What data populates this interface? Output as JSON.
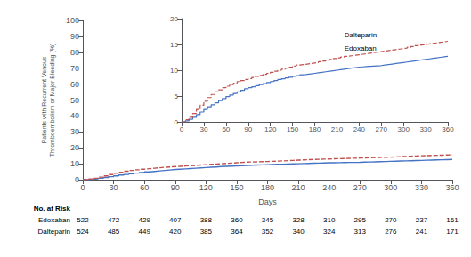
{
  "chart_data": [
    {
      "type": "step",
      "xlabel": "Days",
      "ylabel": "Patients with Recurrent Venous\nThromboembolism or Major Bleeding (%)",
      "x": [
        0,
        5,
        10,
        15,
        20,
        25,
        30,
        35,
        40,
        45,
        50,
        55,
        60,
        65,
        70,
        75,
        80,
        85,
        90,
        95,
        100,
        105,
        110,
        115,
        120,
        125,
        130,
        135,
        140,
        145,
        150,
        155,
        160,
        165,
        170,
        175,
        180,
        185,
        190,
        195,
        200,
        205,
        210,
        215,
        220,
        225,
        230,
        235,
        240,
        245,
        250,
        255,
        260,
        265,
        270,
        275,
        280,
        285,
        290,
        295,
        300,
        305,
        310,
        315,
        320,
        325,
        330,
        335,
        340,
        345,
        350,
        355,
        360
      ],
      "series": [
        {
          "name": "Edoxaban",
          "color": "#4472C4",
          "line_style": "solid",
          "values": [
            0,
            0.2,
            0.5,
            0.9,
            1.4,
            1.9,
            2.4,
            2.9,
            3.3,
            3.7,
            4.1,
            4.5,
            4.9,
            5.2,
            5.5,
            5.8,
            6.1,
            6.4,
            6.6,
            6.8,
            7.0,
            7.2,
            7.4,
            7.6,
            7.8,
            8.0,
            8.2,
            8.35,
            8.5,
            8.65,
            8.8,
            8.95,
            9.1,
            9.2,
            9.3,
            9.4,
            9.5,
            9.6,
            9.7,
            9.8,
            9.9,
            10.0,
            10.1,
            10.2,
            10.3,
            10.4,
            10.5,
            10.6,
            10.65,
            10.7,
            10.75,
            10.8,
            10.85,
            10.9,
            11.0,
            11.1,
            11.2,
            11.3,
            11.4,
            11.5,
            11.6,
            11.7,
            11.8,
            11.9,
            12.0,
            12.1,
            12.2,
            12.3,
            12.4,
            12.5,
            12.6,
            12.7,
            12.8
          ]
        },
        {
          "name": "Dalteparin",
          "color": "#C0504D",
          "line_style": "dashed",
          "values": [
            0,
            0.4,
            0.9,
            1.6,
            2.4,
            3.2,
            4.0,
            4.7,
            5.3,
            5.8,
            6.2,
            6.6,
            6.9,
            7.2,
            7.5,
            7.8,
            8.0,
            8.2,
            8.4,
            8.6,
            8.8,
            9.0,
            9.2,
            9.4,
            9.6,
            9.8,
            10.0,
            10.2,
            10.4,
            10.6,
            10.8,
            11.0,
            11.1,
            11.2,
            11.3,
            11.4,
            11.5,
            11.65,
            11.8,
            11.95,
            12.1,
            12.25,
            12.4,
            12.55,
            12.7,
            12.8,
            12.9,
            13.0,
            13.1,
            13.2,
            13.3,
            13.4,
            13.5,
            13.6,
            13.7,
            13.8,
            13.9,
            14.0,
            14.1,
            14.2,
            14.3,
            14.45,
            14.6,
            14.75,
            14.9,
            15.0,
            15.1,
            15.2,
            15.3,
            15.4,
            15.5,
            15.6,
            15.7
          ]
        }
      ],
      "xlim": [
        0,
        360
      ],
      "ylim": [
        0,
        100
      ],
      "xticks": [
        0,
        30,
        60,
        90,
        120,
        150,
        180,
        210,
        240,
        270,
        300,
        330,
        360
      ],
      "yticks": [
        0,
        10,
        20,
        30,
        40,
        50,
        60,
        70,
        80,
        90,
        100
      ],
      "grid": false,
      "at_risk": {
        "title": "No. at Risk",
        "x": [
          0,
          30,
          60,
          90,
          120,
          150,
          180,
          210,
          240,
          270,
          300,
          330,
          360
        ],
        "rows": [
          {
            "name": "Edoxaban",
            "values": [
              522,
              472,
              429,
              407,
              388,
              360,
              345,
              328,
              310,
              295,
              270,
              237,
              161
            ]
          },
          {
            "name": "Dalteparin",
            "values": [
              524,
              485,
              449,
              420,
              385,
              364,
              352,
              340,
              324,
              313,
              276,
              241,
              171
            ]
          }
        ]
      }
    },
    {
      "type": "step",
      "x": [
        0,
        5,
        10,
        15,
        20,
        25,
        30,
        35,
        40,
        45,
        50,
        55,
        60,
        65,
        70,
        75,
        80,
        85,
        90,
        95,
        100,
        105,
        110,
        115,
        120,
        125,
        130,
        135,
        140,
        145,
        150,
        155,
        160,
        165,
        170,
        175,
        180,
        185,
        190,
        195,
        200,
        205,
        210,
        215,
        220,
        225,
        230,
        235,
        240,
        245,
        250,
        255,
        260,
        265,
        270,
        275,
        280,
        285,
        290,
        295,
        300,
        305,
        310,
        315,
        320,
        325,
        330,
        335,
        340,
        345,
        350,
        355,
        360
      ],
      "series": [
        {
          "name": "Edoxaban",
          "color": "#4472C4",
          "line_style": "solid",
          "values": [
            0,
            0.2,
            0.5,
            0.9,
            1.4,
            1.9,
            2.4,
            2.9,
            3.3,
            3.7,
            4.1,
            4.5,
            4.9,
            5.2,
            5.5,
            5.8,
            6.1,
            6.4,
            6.6,
            6.8,
            7.0,
            7.2,
            7.4,
            7.6,
            7.8,
            8.0,
            8.2,
            8.35,
            8.5,
            8.65,
            8.8,
            8.95,
            9.1,
            9.2,
            9.3,
            9.4,
            9.5,
            9.6,
            9.7,
            9.8,
            9.9,
            10.0,
            10.1,
            10.2,
            10.3,
            10.4,
            10.5,
            10.6,
            10.65,
            10.7,
            10.75,
            10.8,
            10.85,
            10.9,
            11.0,
            11.1,
            11.2,
            11.3,
            11.4,
            11.5,
            11.6,
            11.7,
            11.8,
            11.9,
            12.0,
            12.1,
            12.2,
            12.3,
            12.4,
            12.5,
            12.6,
            12.7,
            12.8
          ]
        },
        {
          "name": "Dalteparin",
          "color": "#C0504D",
          "line_style": "dashed",
          "values": [
            0,
            0.4,
            0.9,
            1.6,
            2.4,
            3.2,
            4.0,
            4.7,
            5.3,
            5.8,
            6.2,
            6.6,
            6.9,
            7.2,
            7.5,
            7.8,
            8.0,
            8.2,
            8.4,
            8.6,
            8.8,
            9.0,
            9.2,
            9.4,
            9.6,
            9.8,
            10.0,
            10.2,
            10.4,
            10.6,
            10.8,
            11.0,
            11.1,
            11.2,
            11.3,
            11.4,
            11.5,
            11.65,
            11.8,
            11.95,
            12.1,
            12.25,
            12.4,
            12.55,
            12.7,
            12.8,
            12.9,
            13.0,
            13.1,
            13.2,
            13.3,
            13.4,
            13.5,
            13.6,
            13.7,
            13.8,
            13.9,
            14.0,
            14.1,
            14.2,
            14.3,
            14.45,
            14.6,
            14.75,
            14.9,
            15.0,
            15.1,
            15.2,
            15.3,
            15.4,
            15.5,
            15.6,
            15.7
          ]
        }
      ],
      "xlim": [
        0,
        360
      ],
      "ylim": [
        0,
        20
      ],
      "xticks": [
        0,
        30,
        60,
        90,
        120,
        150,
        180,
        210,
        240,
        270,
        300,
        330,
        360
      ],
      "yticks": [
        0,
        5,
        10,
        15,
        20
      ],
      "grid": false,
      "annotations": [
        {
          "text": "Dalteparin",
          "x": 220,
          "y": 16.2
        },
        {
          "text": "Edoxaban",
          "x": 220,
          "y": 13.5
        }
      ]
    }
  ]
}
